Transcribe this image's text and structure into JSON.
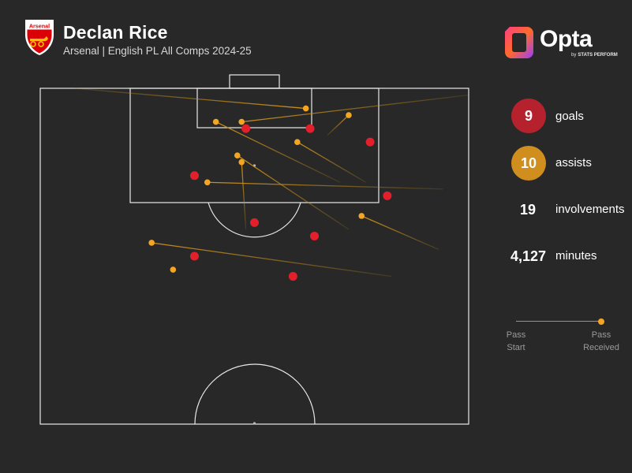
{
  "header": {
    "crest_text": "Arsenal",
    "player_name": "Declan Rice",
    "subtitle": "Arsenal | English PL All Comps 2024-25"
  },
  "brand": {
    "opta_word": "Opta",
    "opta_by": "by",
    "opta_sub": "STATS PERFORM"
  },
  "stats": {
    "goals": {
      "value": "9",
      "label": "goals",
      "color": "#b5222d"
    },
    "assists": {
      "value": "10",
      "label": "assists",
      "color": "#d08e1f"
    },
    "involvements": {
      "value": "19",
      "label": "involvements"
    },
    "minutes": {
      "value": "4,127",
      "label": "minutes"
    }
  },
  "legend": {
    "start_line1": "Pass",
    "start_line2": "Start",
    "end_line1": "Pass",
    "end_line2": "Received"
  },
  "colors": {
    "background": "#282828",
    "pitch_lines": "#e8e8e8",
    "goal_marker": "#e21f2a",
    "assist_marker": "#f4a623",
    "assist_line": "#c9901c"
  },
  "chart_data": {
    "type": "scatter",
    "pitch_units": "StatsPerform 0-100 (x toward goal, y across pitch)",
    "goals": [
      {
        "x": 94,
        "y": 48
      },
      {
        "x": 94,
        "y": 63
      },
      {
        "x": 92,
        "y": 77
      },
      {
        "x": 87,
        "y": 36
      },
      {
        "x": 84,
        "y": 81
      },
      {
        "x": 80,
        "y": 50
      },
      {
        "x": 78,
        "y": 64
      },
      {
        "x": 75,
        "y": 36
      },
      {
        "x": 72,
        "y": 59
      }
    ],
    "assists": [
      {
        "start_x": 99,
        "start_y": 100,
        "end_x": 95,
        "end_y": 47
      },
      {
        "start_x": 100,
        "start_y": 8,
        "end_x": 97,
        "end_y": 62
      },
      {
        "start_x": 93,
        "start_y": 67,
        "end_x": 96,
        "end_y": 72
      },
      {
        "start_x": 86,
        "start_y": 76,
        "end_x": 92,
        "end_y": 60
      },
      {
        "start_x": 86,
        "start_y": 70,
        "end_x": 95,
        "end_y": 41
      },
      {
        "start_x": 79,
        "start_y": 48,
        "end_x": 89,
        "end_y": 47
      },
      {
        "start_x": 85,
        "start_y": 94,
        "end_x": 86,
        "end_y": 39
      },
      {
        "start_x": 79,
        "start_y": 72,
        "end_x": 90,
        "end_y": 46
      },
      {
        "start_x": 76,
        "start_y": 93,
        "end_x": 81,
        "end_y": 75
      },
      {
        "start_x": 72,
        "start_y": 82,
        "end_x": 77,
        "end_y": 26
      }
    ],
    "other_points": [
      {
        "x": 73,
        "y": 31
      }
    ]
  }
}
